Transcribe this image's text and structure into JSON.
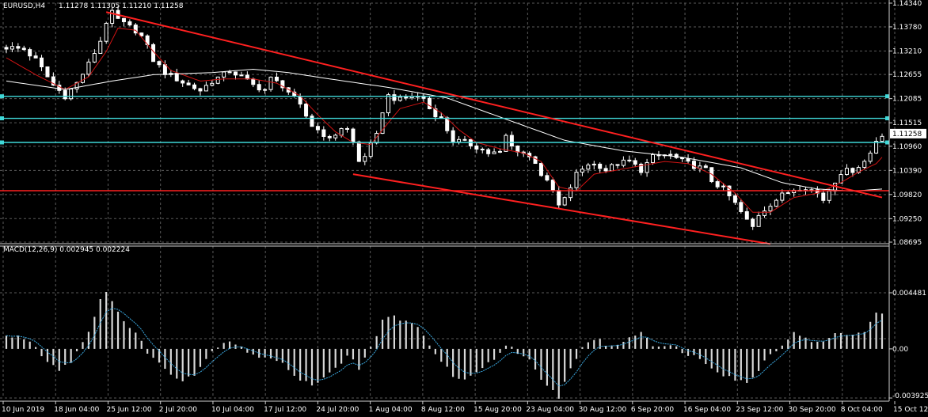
{
  "header": {
    "symbol": "EURUSD,H4",
    "ohlc": "1.11278 1.11305 1.11210 1.11258"
  },
  "macd_header": {
    "label": "MACD(12,26,9) 0.002945 0.002224"
  },
  "colors": {
    "background": "#000000",
    "grid": "#5a5a5a",
    "bull_candle": "#ffffff",
    "bear_candle": "#ffffff",
    "ma_fast": "#d11414",
    "ma_slow": "#ffffff",
    "trendline": "#ff2020",
    "horizontal_level": "#3fd8d8",
    "macd_hist": "#d8d8d8",
    "macd_signal": "#3aa8e0",
    "current_price_box": "#ffffff"
  },
  "chart_data": [
    {
      "type": "candlestick",
      "name": "EURUSD,H4",
      "ylim": [
        1.08695,
        1.1434
      ],
      "y_ticks": [
        "1.14340",
        "1.13780",
        "1.13210",
        "1.12655",
        "1.12085",
        "1.11515",
        "1.10960",
        "1.10390",
        "1.09820",
        "1.09250",
        "1.08695"
      ],
      "current_price": "1.11258",
      "x_ticks": [
        "10 Jun 2019",
        "18 Jun 04:00",
        "25 Jun 12:00",
        "2 Jul 20:00",
        "10 Jul 04:00",
        "17 Jul 12:00",
        "24 Jul 20:00",
        "1 Aug 04:00",
        "8 Aug 12:00",
        "15 Aug 20:00",
        "23 Aug 04:00",
        "30 Aug 12:00",
        "6 Sep 20:00",
        "16 Sep 04:00",
        "23 Sep 12:00",
        "30 Sep 20:00",
        "8 Oct 04:00",
        "15 Oct 12:00"
      ],
      "close_path": [
        [
          0,
          1.133
        ],
        [
          3,
          1.1325
        ],
        [
          5,
          1.13
        ],
        [
          8,
          1.124
        ],
        [
          10,
          1.1215
        ],
        [
          12,
          1.1245
        ],
        [
          14,
          1.129
        ],
        [
          16,
          1.1345
        ],
        [
          17,
          1.139
        ],
        [
          18,
          1.141
        ],
        [
          19,
          1.1395
        ],
        [
          20,
          1.1385
        ],
        [
          22,
          1.137
        ],
        [
          23,
          1.1355
        ],
        [
          24,
          1.133
        ],
        [
          25,
          1.13
        ],
        [
          26,
          1.1285
        ],
        [
          27,
          1.127
        ],
        [
          29,
          1.1255
        ],
        [
          31,
          1.124
        ],
        [
          33,
          1.1228
        ],
        [
          35,
          1.125
        ],
        [
          37,
          1.1265
        ],
        [
          38,
          1.1275
        ],
        [
          40,
          1.126
        ],
        [
          42,
          1.124
        ],
        [
          44,
          1.123
        ],
        [
          45,
          1.1255
        ],
        [
          47,
          1.124
        ],
        [
          48,
          1.1225
        ],
        [
          50,
          1.119
        ],
        [
          52,
          1.1145
        ],
        [
          54,
          1.1125
        ],
        [
          55,
          1.111
        ],
        [
          56,
          1.1125
        ],
        [
          57,
          1.114
        ],
        [
          58,
          1.1135
        ],
        [
          59,
          1.1105
        ],
        [
          60,
          1.106
        ],
        [
          61,
          1.1075
        ],
        [
          63,
          1.112
        ],
        [
          64,
          1.118
        ],
        [
          65,
          1.1215
        ],
        [
          67,
          1.1205
        ],
        [
          69,
          1.1215
        ],
        [
          71,
          1.121
        ],
        [
          72,
          1.1185
        ],
        [
          74,
          1.116
        ],
        [
          76,
          1.111
        ],
        [
          78,
          1.1105
        ],
        [
          80,
          1.1095
        ],
        [
          82,
          1.108
        ],
        [
          84,
          1.108
        ],
        [
          85,
          1.112
        ],
        [
          86,
          1.1095
        ],
        [
          88,
          1.108
        ],
        [
          90,
          1.106
        ],
        [
          91,
          1.103
        ],
        [
          93,
          1.099
        ],
        [
          94,
          1.0955
        ],
        [
          95,
          1.097
        ],
        [
          97,
          1.103
        ],
        [
          99,
          1.1055
        ],
        [
          101,
          1.105
        ],
        [
          102,
          1.104
        ],
        [
          104,
          1.1055
        ],
        [
          106,
          1.106
        ],
        [
          108,
          1.104
        ],
        [
          110,
          1.107
        ],
        [
          112,
          1.1075
        ],
        [
          113,
          1.1075
        ],
        [
          115,
          1.106
        ],
        [
          117,
          1.105
        ],
        [
          119,
          1.104
        ],
        [
          120,
          1.1015
        ],
        [
          122,
          1.0995
        ],
        [
          124,
          1.096
        ],
        [
          126,
          1.092
        ],
        [
          127,
          1.0905
        ],
        [
          128,
          1.0935
        ],
        [
          130,
          1.096
        ],
        [
          132,
          1.098
        ],
        [
          134,
          1.0995
        ],
        [
          136,
          1.1
        ],
        [
          138,
          1.0985
        ],
        [
          139,
          1.097
        ],
        [
          141,
          1.1015
        ],
        [
          142,
          1.1035
        ],
        [
          144,
          1.104
        ],
        [
          146,
          1.106
        ],
        [
          147,
          1.108
        ],
        [
          148,
          1.111
        ],
        [
          149,
          1.1125
        ]
      ],
      "moving_averages": [
        {
          "name": "ma-fast",
          "path": [
            [
              0,
              1.1305
            ],
            [
              5,
              1.1265
            ],
            [
              10,
              1.123
            ],
            [
              14,
              1.126
            ],
            [
              17,
              1.132
            ],
            [
              19,
              1.1375
            ],
            [
              22,
              1.137
            ],
            [
              25,
              1.132
            ],
            [
              28,
              1.1275
            ],
            [
              33,
              1.125
            ],
            [
              37,
              1.1255
            ],
            [
              42,
              1.1255
            ],
            [
              46,
              1.1245
            ],
            [
              50,
              1.1215
            ],
            [
              53,
              1.117
            ],
            [
              56,
              1.113
            ],
            [
              59,
              1.1105
            ],
            [
              62,
              1.11
            ],
            [
              64,
              1.1135
            ],
            [
              67,
              1.1185
            ],
            [
              71,
              1.12
            ],
            [
              74,
              1.1175
            ],
            [
              77,
              1.1135
            ],
            [
              80,
              1.1105
            ],
            [
              84,
              1.109
            ],
            [
              88,
              1.108
            ],
            [
              91,
              1.106
            ],
            [
              94,
              1.1
            ],
            [
              97,
              1.099
            ],
            [
              100,
              1.103
            ],
            [
              104,
              1.104
            ],
            [
              108,
              1.105
            ],
            [
              112,
              1.106
            ],
            [
              116,
              1.1055
            ],
            [
              120,
              1.103
            ],
            [
              124,
              1.0985
            ],
            [
              127,
              1.094
            ],
            [
              130,
              1.094
            ],
            [
              134,
              1.0975
            ],
            [
              138,
              1.0985
            ],
            [
              142,
              1.101
            ],
            [
              145,
              1.1035
            ],
            [
              148,
              1.1055
            ],
            [
              149,
              1.107
            ]
          ]
        },
        {
          "name": "ma-slow",
          "path": [
            [
              0,
              1.125
            ],
            [
              10,
              1.123
            ],
            [
              18,
              1.125
            ],
            [
              25,
              1.1265
            ],
            [
              35,
              1.127
            ],
            [
              42,
              1.1278
            ],
            [
              48,
              1.127
            ],
            [
              55,
              1.1255
            ],
            [
              65,
              1.1235
            ],
            [
              75,
              1.121
            ],
            [
              85,
              1.116
            ],
            [
              95,
              1.111
            ],
            [
              105,
              1.1085
            ],
            [
              115,
              1.107
            ],
            [
              125,
              1.1045
            ],
            [
              132,
              1.101
            ],
            [
              138,
              1.0995
            ],
            [
              144,
              1.099
            ],
            [
              149,
              1.0995
            ]
          ]
        }
      ],
      "trendlines": [
        {
          "name": "upper-channel-line",
          "from": [
            17,
            1.1413
          ],
          "to": [
            149,
            1.0975
          ]
        },
        {
          "name": "lower-channel-line",
          "from": [
            59,
            1.103
          ],
          "to": [
            130,
            1.0865
          ]
        }
      ],
      "horizontal_levels": [
        {
          "name": "level-1",
          "value": 1.1214,
          "color": "#3fd8d8"
        },
        {
          "name": "level-2",
          "value": 1.1162,
          "color": "#3fd8d8"
        },
        {
          "name": "level-3",
          "value": 1.1105,
          "color": "#3fd8d8"
        },
        {
          "name": "level-4",
          "value": 1.0991,
          "color": "#ff2020"
        }
      ]
    },
    {
      "type": "bar",
      "name": "MACD(12,26,9)",
      "ylim": [
        -0.003925,
        0.004481
      ],
      "y_ticks": [
        "0.004481",
        "0.00",
        "-0.003925"
      ],
      "histogram_path": [
        [
          0,
          0.001
        ],
        [
          3,
          0.0009
        ],
        [
          5,
          0.0002
        ],
        [
          7,
          -0.001
        ],
        [
          9,
          -0.0016
        ],
        [
          11,
          -0.001
        ],
        [
          13,
          0.0006
        ],
        [
          15,
          0.0025
        ],
        [
          16,
          0.0038
        ],
        [
          17,
          0.0044
        ],
        [
          18,
          0.004
        ],
        [
          20,
          0.0022
        ],
        [
          22,
          0.0012
        ],
        [
          24,
          -0.0002
        ],
        [
          26,
          -0.0012
        ],
        [
          28,
          -0.002
        ],
        [
          30,
          -0.0024
        ],
        [
          32,
          -0.002
        ],
        [
          34,
          -0.0008
        ],
        [
          36,
          0.0003
        ],
        [
          38,
          0.0007
        ],
        [
          40,
          0.0002
        ],
        [
          42,
          -0.0006
        ],
        [
          44,
          -0.0006
        ],
        [
          46,
          -0.001
        ],
        [
          48,
          -0.0016
        ],
        [
          50,
          -0.0024
        ],
        [
          52,
          -0.0028
        ],
        [
          54,
          -0.0024
        ],
        [
          56,
          -0.0016
        ],
        [
          58,
          -0.0004
        ],
        [
          59,
          -0.001
        ],
        [
          60,
          -0.0018
        ],
        [
          61,
          -0.0008
        ],
        [
          63,
          0.001
        ],
        [
          64,
          0.0024
        ],
        [
          66,
          0.0026
        ],
        [
          68,
          0.0022
        ],
        [
          70,
          0.0016
        ],
        [
          72,
          0.0004
        ],
        [
          74,
          -0.001
        ],
        [
          76,
          -0.0022
        ],
        [
          78,
          -0.0026
        ],
        [
          80,
          -0.002
        ],
        [
          82,
          -0.0012
        ],
        [
          84,
          -0.0004
        ],
        [
          85,
          0.0004
        ],
        [
          87,
          -0.0002
        ],
        [
          89,
          -0.001
        ],
        [
          91,
          -0.0026
        ],
        [
          93,
          -0.0034
        ],
        [
          94,
          -0.0038
        ],
        [
          96,
          -0.0016
        ],
        [
          98,
          0.0002
        ],
        [
          100,
          0.0008
        ],
        [
          102,
          0.0004
        ],
        [
          104,
          0.0002
        ],
        [
          106,
          0.001
        ],
        [
          108,
          0.0014
        ],
        [
          110,
          0.0004
        ],
        [
          112,
          0.0002
        ],
        [
          114,
          0.0001
        ],
        [
          116,
          -0.0004
        ],
        [
          118,
          -0.0008
        ],
        [
          120,
          -0.0014
        ],
        [
          122,
          -0.002
        ],
        [
          124,
          -0.0024
        ],
        [
          126,
          -0.0028
        ],
        [
          128,
          -0.0016
        ],
        [
          130,
          -0.0004
        ],
        [
          132,
          0.0004
        ],
        [
          134,
          0.0012
        ],
        [
          136,
          0.001
        ],
        [
          138,
          0.0004
        ],
        [
          140,
          0.0008
        ],
        [
          142,
          0.0014
        ],
        [
          144,
          0.001
        ],
        [
          146,
          0.0014
        ],
        [
          148,
          0.003
        ],
        [
          149,
          0.003
        ]
      ]
    }
  ]
}
